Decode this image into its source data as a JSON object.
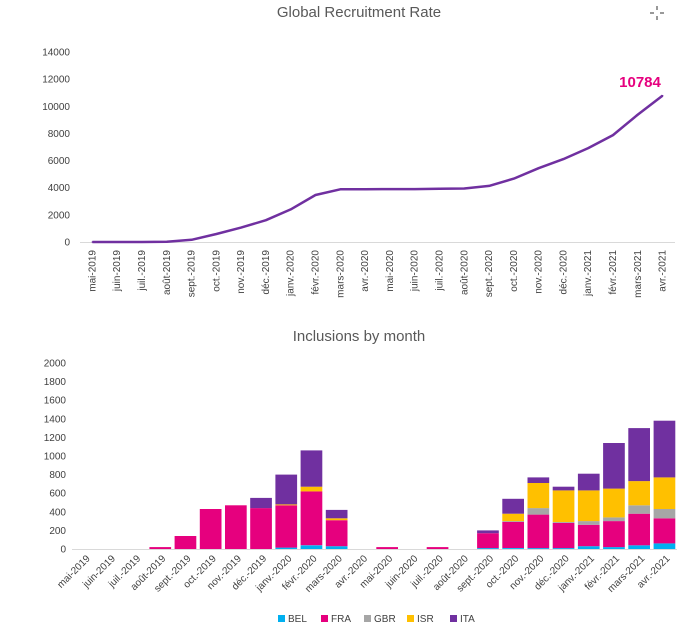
{
  "chart_data": [
    {
      "type": "line",
      "title": "Global Recruitment Rate",
      "xlabel": "",
      "ylabel": "",
      "ylim": [
        0,
        14000
      ],
      "yticks": [
        0,
        2000,
        4000,
        6000,
        8000,
        10000,
        12000,
        14000
      ],
      "grid": false,
      "categories": [
        "mai-2019",
        "juin-2019",
        "juil.-2019",
        "août-2019",
        "sept.-2019",
        "oct.-2019",
        "nov.-2019",
        "déc.-2019",
        "janv.-2020",
        "févr.-2020",
        "mars-2020",
        "avr.-2020",
        "mai-2020",
        "juin-2020",
        "juil.-2020",
        "août-2020",
        "sept.-2020",
        "oct.-2020",
        "nov.-2020",
        "déc.-2020",
        "janv.-2021",
        "févr.-2021",
        "mars-2021",
        "avr.-2021"
      ],
      "series": [
        {
          "color": "#7030a0",
          "values": [
            0,
            0,
            0,
            20,
            160,
            590,
            1060,
            1610,
            2400,
            3460,
            3880,
            3880,
            3900,
            3900,
            3920,
            3940,
            4130,
            4670,
            5440,
            6110,
            6920,
            7880,
            9390,
            10784
          ]
        }
      ],
      "annotation": {
        "text": "10784",
        "color": "#e6007e"
      }
    },
    {
      "type": "bar",
      "stacked": true,
      "title": "Inclusions by month",
      "xlabel": "",
      "ylabel": "",
      "ylim": [
        0,
        2000
      ],
      "yticks": [
        0,
        200,
        400,
        600,
        800,
        1000,
        1200,
        1400,
        1600,
        1800,
        2000
      ],
      "grid": false,
      "legend_position": "bottom",
      "categories": [
        "mai-2019",
        "juin-2019",
        "juil.-2019",
        "août-2019",
        "sept.-2019",
        "oct.-2019",
        "nov.-2019",
        "déc.-2019",
        "janv.-2020",
        "févr.-2020",
        "mars-2020",
        "avr.-2020",
        "mai-2020",
        "juin-2020",
        "juil.-2020",
        "août-2020",
        "sept.-2020",
        "oct.-2020",
        "nov.-2020",
        "déc.-2020",
        "janv.-2021",
        "févr.-2021",
        "mars-2021",
        "avr.-2021"
      ],
      "series": [
        {
          "name": "BEL",
          "color": "#00b0f0",
          "values": [
            0,
            0,
            0,
            0,
            0,
            0,
            0,
            0,
            15,
            40,
            30,
            0,
            0,
            0,
            0,
            0,
            10,
            10,
            10,
            10,
            30,
            20,
            40,
            60
          ]
        },
        {
          "name": "FRA",
          "color": "#e6007e",
          "values": [
            0,
            0,
            0,
            20,
            140,
            430,
            470,
            440,
            455,
            580,
            280,
            0,
            20,
            0,
            20,
            0,
            160,
            280,
            360,
            270,
            230,
            280,
            340,
            270
          ]
        },
        {
          "name": "GBR",
          "color": "#a6a6a6",
          "values": [
            0,
            0,
            0,
            0,
            0,
            0,
            0,
            0,
            0,
            0,
            0,
            0,
            0,
            0,
            0,
            0,
            0,
            10,
            70,
            10,
            40,
            40,
            90,
            100
          ]
        },
        {
          "name": "ISR",
          "color": "#ffc000",
          "values": [
            0,
            0,
            0,
            0,
            0,
            0,
            0,
            0,
            10,
            50,
            20,
            0,
            0,
            0,
            0,
            0,
            0,
            80,
            270,
            340,
            330,
            310,
            260,
            340
          ]
        },
        {
          "name": "ITA",
          "color": "#7030a0",
          "values": [
            0,
            0,
            0,
            0,
            0,
            0,
            0,
            110,
            320,
            390,
            90,
            0,
            0,
            0,
            0,
            0,
            30,
            160,
            60,
            40,
            180,
            490,
            570,
            610
          ]
        }
      ]
    }
  ],
  "decorations": {
    "cursor_icon": "crosshair-move-icon"
  }
}
